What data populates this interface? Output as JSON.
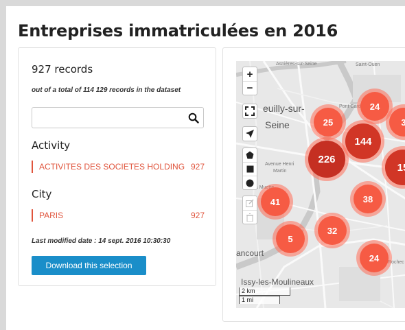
{
  "page": {
    "title": "Entreprises immatriculées en 2016"
  },
  "filters": {
    "count": "927 records",
    "subtotal": "out of a total of 114 129 records in the dataset",
    "search_value": "",
    "activity": {
      "heading": "Activity",
      "items": [
        {
          "label": "ACTIVITES DES SOCIETES HOLDING",
          "count": "927"
        }
      ]
    },
    "city": {
      "heading": "City",
      "items": [
        {
          "label": "PARIS",
          "count": "927"
        }
      ]
    },
    "modified": "Last modified date : 14 sept. 2016 10:30:30",
    "download_label": "Download this selection"
  },
  "map": {
    "labels": {
      "neuilly": "euilly-sur-",
      "seine": "Seine",
      "avenue": "Avenue Henri",
      "martin": "Martin",
      "ancourt": "ancourt",
      "issy": "Issy-les-Moulineaux",
      "asnieres": "Asnières-sur-Seine",
      "saint_ouen": "Saint-Ouen",
      "pont_cardinet": "Pont Cardinet",
      "rochechouart": "Rochec",
      "la_muette": "La Muette"
    },
    "controls": {
      "zoom_in": "+",
      "zoom_out": "−"
    },
    "clusters": [
      {
        "value": "24",
        "size": "medium"
      },
      {
        "value": "25",
        "size": "medium"
      },
      {
        "value": "3",
        "size": "medium"
      },
      {
        "value": "226",
        "size": "large"
      },
      {
        "value": "144",
        "size": "large"
      },
      {
        "value": "15",
        "size": "large"
      },
      {
        "value": "41",
        "size": "medium"
      },
      {
        "value": "38",
        "size": "medium"
      },
      {
        "value": "32",
        "size": "medium"
      },
      {
        "value": "5",
        "size": "medium"
      },
      {
        "value": "24",
        "size": "medium"
      }
    ],
    "scale": {
      "km": "2 km",
      "mi": "1 mi"
    },
    "colors": {
      "cluster_medium": "#f65b44",
      "cluster_large": "#c52f22",
      "accent": "#e0543c",
      "button": "#1a8ec9"
    }
  }
}
